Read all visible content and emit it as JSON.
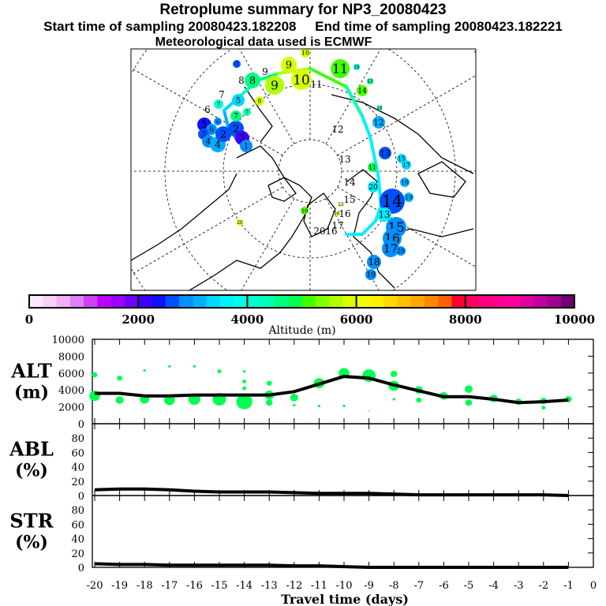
{
  "header": {
    "title": "Retroplume summary for NP3_20080423",
    "start": "Start time of sampling 20080423.182208",
    "end": "End time of sampling 20080423.182221",
    "met": "Meteorological data used is ECMWF"
  },
  "colorbar": {
    "label": "Altitude (m)",
    "ticks": [
      "0",
      "2000",
      "4000",
      "6000",
      "8000",
      "10000"
    ],
    "range": [
      0,
      10000
    ],
    "colors": [
      "#ffe8ff",
      "#f8d0f8",
      "#f0b0f8",
      "#e080f8",
      "#d040f8",
      "#c000ff",
      "#a000ff",
      "#7000ff",
      "#4000ff",
      "#1010ff",
      "#0050ff",
      "#0090ff",
      "#00b0ff",
      "#00d8ff",
      "#00f0ff",
      "#00ffe8",
      "#00ffd0",
      "#00ffb0",
      "#00ff80",
      "#00ff50",
      "#40ff00",
      "#80ff00",
      "#b0ff00",
      "#d8ff00",
      "#f0ff00",
      "#fff000",
      "#ffd800",
      "#ffc000",
      "#ffa800",
      "#ff8800",
      "#ff6000",
      "#ff0030",
      "#ff0060",
      "#ff0080",
      "#ff0090",
      "#ff00a0",
      "#e000a0",
      "#c000a0",
      "#a00090",
      "#700070"
    ]
  },
  "map": {
    "day_labels": [
      {
        "t": "12",
        "lon": 428,
        "lat": 168
      },
      {
        "t": "13",
        "lon": 437,
        "lat": 206
      },
      {
        "t": "14",
        "lon": 443,
        "lat": 235
      },
      {
        "t": "15",
        "lon": 443,
        "lat": 257
      },
      {
        "t": "16",
        "lon": 437,
        "lat": 275
      },
      {
        "t": "17",
        "lon": 428,
        "lat": 290
      },
      {
        "t": "20",
        "lon": 405,
        "lat": 297
      },
      {
        "t": "16",
        "lon": 420,
        "lat": 297
      },
      {
        "t": "11",
        "lon": 401,
        "lat": 111
      },
      {
        "t": "8",
        "lon": 306,
        "lat": 106
      },
      {
        "t": "9",
        "lon": 336,
        "lat": 95
      },
      {
        "t": "6",
        "lon": 263,
        "lat": 143
      },
      {
        "t": "7",
        "lon": 281,
        "lat": 124
      }
    ],
    "clusters": [
      {
        "t": "5",
        "c": "#1010ff",
        "s": 9,
        "p": [
          259,
          158
        ]
      },
      {
        "t": "6",
        "c": "#0090ff",
        "s": 7,
        "p": [
          268,
          164
        ]
      },
      {
        "t": "3",
        "c": "#0050ff",
        "s": 7,
        "p": [
          258,
          170
        ]
      },
      {
        "t": "4",
        "c": "#0090ff",
        "s": 8,
        "p": [
          264,
          179
        ]
      },
      {
        "t": "4",
        "c": "#00b0ff",
        "s": 10,
        "p": [
          276,
          183
        ]
      },
      {
        "t": "2",
        "c": "#0050ff",
        "s": 10,
        "p": [
          283,
          170
        ]
      },
      {
        "t": "2",
        "c": "#0050ff",
        "s": 10,
        "p": [
          299,
          163
        ]
      },
      {
        "t": "3",
        "c": "#4000ff",
        "s": 9,
        "p": [
          307,
          175
        ]
      },
      {
        "t": "1",
        "c": "#0090ff",
        "s": 8,
        "p": [
          312,
          185
        ]
      },
      {
        "t": "7",
        "c": "#00ffd0",
        "s": 6,
        "p": [
          277,
          132
        ]
      },
      {
        "t": "7",
        "c": "#00ff80",
        "s": 7,
        "p": [
          299,
          147
        ]
      },
      {
        "t": "7",
        "c": "#00ffb0",
        "s": 5,
        "p": [
          313,
          142
        ]
      },
      {
        "t": "6",
        "c": "#0090ff",
        "s": 5,
        "p": [
          276,
          154
        ]
      },
      {
        "t": "5",
        "c": "#00d8ff",
        "s": 8,
        "p": [
          302,
          127
        ]
      },
      {
        "t": "8",
        "c": "#00ff80",
        "s": 10,
        "p": [
          320,
          102
        ]
      },
      {
        "t": "9",
        "c": "#b0ff00",
        "s": 12,
        "p": [
          348,
          108
        ]
      },
      {
        "t": "8",
        "c": "#d8ff00",
        "s": 6,
        "p": [
          329,
          128
        ]
      },
      {
        "t": "9",
        "c": "#d8ff00",
        "s": 10,
        "p": [
          366,
          82
        ]
      },
      {
        "t": "10",
        "c": "#d8ff00",
        "s": 13,
        "p": [
          382,
          101
        ]
      },
      {
        "t": "10",
        "c": "#d8ff00",
        "s": 6,
        "p": [
          387,
          67
        ]
      },
      {
        "t": "11",
        "c": "#40ff00",
        "s": 12,
        "p": [
          431,
          87
        ]
      },
      {
        "t": "7",
        "c": "#0050ff",
        "s": 5,
        "p": [
          300,
          81
        ]
      },
      {
        "t": "18",
        "c": "#00ffd0",
        "s": 4,
        "p": [
          452,
          85
        ]
      },
      {
        "t": "14",
        "c": "#50ff00",
        "s": 7,
        "p": [
          459,
          115
        ]
      },
      {
        "t": "13",
        "c": "#00ff80",
        "s": 4,
        "p": [
          469,
          103
        ]
      },
      {
        "t": "14",
        "c": "#00ffb0",
        "s": 3,
        "p": [
          481,
          137
        ]
      },
      {
        "t": "12",
        "c": "#00b0ff",
        "s": 8,
        "p": [
          480,
          155
        ]
      },
      {
        "t": "13",
        "c": "#0050ff",
        "s": 8,
        "p": [
          488,
          194
        ]
      },
      {
        "t": "15",
        "c": "#00d8ff",
        "s": 6,
        "p": [
          509,
          201
        ]
      },
      {
        "t": "17",
        "c": "#00d8ff",
        "s": 6,
        "p": [
          515,
          209
        ]
      },
      {
        "t": "19",
        "c": "#00b0ff",
        "s": 6,
        "p": [
          513,
          231
        ]
      },
      {
        "t": "11",
        "c": "#00ff50",
        "s": 6,
        "p": [
          472,
          212
        ]
      },
      {
        "t": "20",
        "c": "#00f0ff",
        "s": 7,
        "p": [
          473,
          237
        ]
      },
      {
        "t": "14",
        "c": "#0050ff",
        "s": 16,
        "p": [
          497,
          255
        ]
      },
      {
        "t": "19",
        "c": "#00b0ff",
        "s": 6,
        "p": [
          518,
          250
        ]
      },
      {
        "t": "13",
        "c": "#00f0ff",
        "s": 9,
        "p": [
          487,
          272
        ]
      },
      {
        "t": "15",
        "c": "#0090ff",
        "s": 13,
        "p": [
          502,
          288
        ]
      },
      {
        "t": "16",
        "c": "#0090ff",
        "s": 12,
        "p": [
          497,
          302
        ]
      },
      {
        "t": "17",
        "c": "#0090ff",
        "s": 11,
        "p": [
          495,
          315
        ]
      },
      {
        "t": "20",
        "c": "#0090ff",
        "s": 6,
        "p": [
          508,
          318
        ]
      },
      {
        "t": "18",
        "c": "#0090ff",
        "s": 9,
        "p": [
          474,
          332
        ]
      },
      {
        "t": "19",
        "c": "#0090ff",
        "s": 7,
        "p": [
          470,
          348
        ]
      },
      {
        "t": "19",
        "c": "#50ff00",
        "s": 5,
        "p": [
          386,
          267
        ]
      },
      {
        "t": "20",
        "c": "#f0ff00",
        "s": 4,
        "p": [
          304,
          282
        ]
      },
      {
        "t": "16",
        "c": "#fff000",
        "s": 3,
        "p": [
          427,
          271
        ]
      },
      {
        "t": "15",
        "c": "#fff000",
        "s": 2,
        "p": [
          432,
          260
        ]
      }
    ],
    "trajectory": {
      "path": [
        [
          313,
          185
        ],
        [
          299,
          175
        ],
        [
          289,
          160
        ],
        [
          284,
          140
        ],
        [
          303,
          123
        ],
        [
          326,
          102
        ],
        [
          353,
          93
        ],
        [
          393,
          87
        ],
        [
          439,
          110
        ],
        [
          459,
          147
        ],
        [
          469,
          173
        ],
        [
          479,
          220
        ],
        [
          483,
          260
        ],
        [
          476,
          280
        ],
        [
          459,
          297
        ],
        [
          439,
          297
        ]
      ],
      "colors": [
        "#0050ff",
        "#0090ff",
        "#00b0ff",
        "#00d8ff",
        "#00ffd0",
        "#00ff80",
        "#b0ff00",
        "#40ff00",
        "#00ffb0",
        "#00f0ff",
        "#00f0ff",
        "#00f0ff",
        "#00f0ff",
        "#00f0ff",
        "#00f0ff"
      ]
    }
  },
  "chart_data": [
    {
      "type": "line",
      "panel": "ALT",
      "ylabel": "ALT\n(m)",
      "ylabel_line1": "ALT",
      "ylabel_line2": "(m)",
      "ylim": [
        0,
        10000
      ],
      "yticks": [
        "0",
        "2000",
        "4000",
        "6000",
        "8000",
        "10000"
      ],
      "x": [
        -20,
        -19,
        -18,
        -17,
        -16,
        -15,
        -14,
        -13,
        -12,
        -11,
        -10,
        -9,
        -8,
        -7,
        -6,
        -5,
        -4,
        -3,
        -2,
        -1
      ],
      "values": [
        3600,
        3600,
        3300,
        3300,
        3400,
        3400,
        3400,
        3400,
        3800,
        4700,
        5600,
        5400,
        4600,
        3900,
        3200,
        3200,
        2900,
        2500,
        2600,
        2800
      ],
      "bubbles": [
        [
          -20,
          3300,
          8
        ],
        [
          -20,
          5800,
          4
        ],
        [
          -19,
          2800,
          6
        ],
        [
          -19,
          5400,
          4
        ],
        [
          -18,
          2900,
          7
        ],
        [
          -18,
          6300,
          2
        ],
        [
          -17,
          2800,
          8
        ],
        [
          -17,
          6800,
          2
        ],
        [
          -16,
          2900,
          9
        ],
        [
          -16,
          6800,
          2
        ],
        [
          -15,
          2900,
          10
        ],
        [
          -15,
          6200,
          3
        ],
        [
          -14,
          2600,
          12
        ],
        [
          -14,
          6200,
          2
        ],
        [
          -14,
          5000,
          3
        ],
        [
          -14,
          4200,
          3
        ],
        [
          -13,
          3400,
          7
        ],
        [
          -13,
          2500,
          5
        ],
        [
          -13,
          4800,
          4
        ],
        [
          -12,
          3100,
          6
        ],
        [
          -12,
          2200,
          2
        ],
        [
          -11,
          4800,
          8
        ],
        [
          -11,
          2100,
          2
        ],
        [
          -10,
          6000,
          8
        ],
        [
          -10,
          2100,
          2
        ],
        [
          -9,
          5700,
          10
        ],
        [
          -9,
          1500,
          1
        ],
        [
          -8,
          4500,
          8
        ],
        [
          -8,
          5900,
          5
        ],
        [
          -8,
          2900,
          2
        ],
        [
          -7,
          4000,
          6
        ],
        [
          -7,
          2800,
          4
        ],
        [
          -6,
          3300,
          6
        ],
        [
          -5,
          4100,
          6
        ],
        [
          -5,
          2500,
          5
        ],
        [
          -4,
          3000,
          6
        ],
        [
          -3,
          2600,
          5
        ],
        [
          -2,
          2700,
          5
        ],
        [
          -2,
          1900,
          3
        ],
        [
          -1,
          2900,
          5
        ]
      ],
      "bubble_color": "#00ff50"
    },
    {
      "type": "line",
      "panel": "ABL",
      "ylabel_line1": "ABL",
      "ylabel_line2": "(%)",
      "ylim": [
        0,
        100
      ],
      "yticks": [
        "0",
        "20",
        "40",
        "60",
        "80"
      ],
      "x": [
        -20,
        -19,
        -18,
        -17,
        -16,
        -15,
        -14,
        -13,
        -12,
        -11,
        -10,
        -9,
        -8,
        -7,
        -6,
        -5,
        -4,
        -3,
        -2,
        -1
      ],
      "values": [
        8,
        9,
        9,
        8,
        6,
        5,
        5,
        5,
        4,
        3,
        3,
        3,
        2,
        1,
        1,
        1,
        1,
        1,
        1,
        0
      ]
    },
    {
      "type": "line",
      "panel": "STR",
      "ylabel_line1": "STR",
      "ylabel_line2": "(%)",
      "ylim": [
        0,
        100
      ],
      "yticks": [
        "0",
        "20",
        "40",
        "60",
        "80"
      ],
      "x": [
        -20,
        -19,
        -18,
        -17,
        -16,
        -15,
        -14,
        -13,
        -12,
        -11,
        -10,
        -9,
        -8,
        -7,
        -6,
        -5,
        -4,
        -3,
        -2,
        -1
      ],
      "values": [
        5,
        4,
        4,
        3,
        3,
        3,
        3,
        3,
        2,
        2,
        1,
        0,
        0,
        0,
        0,
        0,
        0,
        0,
        0,
        0
      ]
    }
  ],
  "xaxis": {
    "label": "Travel time (days)",
    "ticks": [
      "-20",
      "-19",
      "-18",
      "-17",
      "-16",
      "-15",
      "-14",
      "-13",
      "-12",
      "-11",
      "-10",
      "-9",
      "-8",
      "-7",
      "-6",
      "-5",
      "-4",
      "-3",
      "-2",
      "-1",
      "0"
    ]
  }
}
